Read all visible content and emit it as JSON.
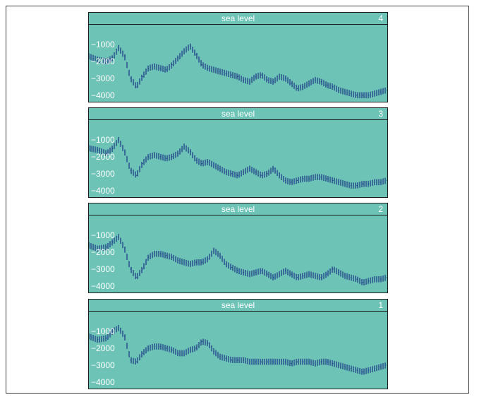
{
  "colors": {
    "panel_bg": "#6cc3b6",
    "trace": "#1f3f87",
    "text": "#ffffff",
    "border": "#1b1b1b"
  },
  "chart_data": [
    {
      "type": "line",
      "title": "sea level",
      "number": "4",
      "yticks": [
        -1000,
        -2000,
        -3000,
        -4000
      ],
      "ylim": [
        -4300,
        0
      ],
      "xlim": [
        0,
        100
      ],
      "x": [
        0,
        3,
        6,
        8,
        10,
        12,
        14,
        16,
        18,
        20,
        22,
        24,
        26,
        28,
        30,
        32,
        34,
        36,
        38,
        40,
        42,
        44,
        46,
        48,
        50,
        52,
        54,
        56,
        58,
        60,
        62,
        64,
        66,
        68,
        70,
        72,
        74,
        76,
        78,
        80,
        82,
        84,
        86,
        88,
        90,
        92,
        94,
        96,
        98,
        100
      ],
      "y": [
        -1700,
        -1900,
        -2000,
        -1800,
        -1200,
        -1700,
        -3000,
        -3500,
        -2900,
        -2400,
        -2300,
        -2400,
        -2500,
        -2200,
        -1800,
        -1400,
        -1100,
        -1600,
        -2200,
        -2400,
        -2500,
        -2600,
        -2700,
        -2800,
        -2900,
        -3100,
        -3200,
        -2900,
        -2800,
        -3100,
        -3200,
        -2900,
        -3000,
        -3300,
        -3600,
        -3500,
        -3300,
        -3100,
        -3200,
        -3400,
        -3500,
        -3700,
        -3800,
        -3900,
        -4000,
        -4000,
        -4000,
        -3900,
        -3800,
        -3700
      ],
      "band": 360
    },
    {
      "type": "line",
      "title": "sea level",
      "number": "3",
      "yticks": [
        -1000,
        -2000,
        -3000,
        -4000
      ],
      "ylim": [
        -4300,
        0
      ],
      "xlim": [
        0,
        100
      ],
      "x": [
        0,
        3,
        6,
        8,
        10,
        12,
        14,
        16,
        18,
        20,
        22,
        24,
        26,
        28,
        30,
        32,
        34,
        36,
        38,
        40,
        42,
        44,
        46,
        48,
        50,
        52,
        54,
        56,
        58,
        60,
        62,
        64,
        66,
        68,
        70,
        72,
        74,
        76,
        78,
        80,
        82,
        84,
        86,
        88,
        90,
        92,
        94,
        96,
        98,
        100
      ],
      "y": [
        -1500,
        -1600,
        -1800,
        -1500,
        -1000,
        -1700,
        -2800,
        -3100,
        -2400,
        -2000,
        -1900,
        -2000,
        -2100,
        -2000,
        -1800,
        -1400,
        -1700,
        -2200,
        -2400,
        -2300,
        -2500,
        -2700,
        -2900,
        -3000,
        -3100,
        -2900,
        -2700,
        -2900,
        -3100,
        -3000,
        -2700,
        -3100,
        -3400,
        -3500,
        -3400,
        -3300,
        -3300,
        -3200,
        -3200,
        -3300,
        -3400,
        -3500,
        -3600,
        -3700,
        -3700,
        -3600,
        -3600,
        -3500,
        -3500,
        -3400
      ],
      "band": 360
    },
    {
      "type": "line",
      "title": "sea level",
      "number": "2",
      "yticks": [
        -1000,
        -2000,
        -3000,
        -4000
      ],
      "ylim": [
        -4300,
        0
      ],
      "xlim": [
        0,
        100
      ],
      "x": [
        0,
        3,
        6,
        8,
        10,
        12,
        14,
        16,
        18,
        20,
        22,
        24,
        26,
        28,
        30,
        32,
        34,
        36,
        38,
        40,
        42,
        44,
        46,
        48,
        50,
        52,
        54,
        56,
        58,
        60,
        62,
        64,
        66,
        68,
        70,
        72,
        74,
        76,
        78,
        80,
        82,
        84,
        86,
        88,
        90,
        92,
        94,
        96,
        98,
        100
      ],
      "y": [
        -1600,
        -1800,
        -1700,
        -1400,
        -1100,
        -1800,
        -3000,
        -3500,
        -3000,
        -2300,
        -2100,
        -2100,
        -2200,
        -2300,
        -2500,
        -2600,
        -2700,
        -2600,
        -2600,
        -2400,
        -1900,
        -2200,
        -2700,
        -2900,
        -3100,
        -3200,
        -3300,
        -3200,
        -3100,
        -3300,
        -3500,
        -3300,
        -3100,
        -3300,
        -3500,
        -3400,
        -3300,
        -3400,
        -3500,
        -3300,
        -3000,
        -3200,
        -3400,
        -3500,
        -3600,
        -3800,
        -3700,
        -3600,
        -3600,
        -3500
      ],
      "band": 360
    },
    {
      "type": "line",
      "title": "sea level",
      "number": "1",
      "yticks": [
        -1000,
        -2000,
        -3000,
        -4000
      ],
      "ylim": [
        -4300,
        0
      ],
      "xlim": [
        0,
        100
      ],
      "x": [
        0,
        3,
        6,
        8,
        10,
        12,
        14,
        16,
        18,
        20,
        22,
        24,
        26,
        28,
        30,
        32,
        34,
        36,
        38,
        40,
        42,
        44,
        46,
        48,
        50,
        52,
        54,
        56,
        58,
        60,
        62,
        64,
        66,
        68,
        70,
        72,
        74,
        76,
        78,
        80,
        82,
        84,
        86,
        88,
        90,
        92,
        94,
        96,
        98,
        100
      ],
      "y": [
        -1300,
        -1500,
        -1400,
        -1000,
        -800,
        -1300,
        -2700,
        -2800,
        -2300,
        -2000,
        -1900,
        -1900,
        -2000,
        -2100,
        -2300,
        -2300,
        -2100,
        -2000,
        -1600,
        -1700,
        -2200,
        -2500,
        -2600,
        -2700,
        -2700,
        -2700,
        -2800,
        -2800,
        -2800,
        -2800,
        -2800,
        -2800,
        -2800,
        -2900,
        -2800,
        -2800,
        -2800,
        -2900,
        -2800,
        -2800,
        -2900,
        -3000,
        -3100,
        -3200,
        -3300,
        -3400,
        -3300,
        -3200,
        -3100,
        -3000
      ],
      "band": 360
    }
  ]
}
